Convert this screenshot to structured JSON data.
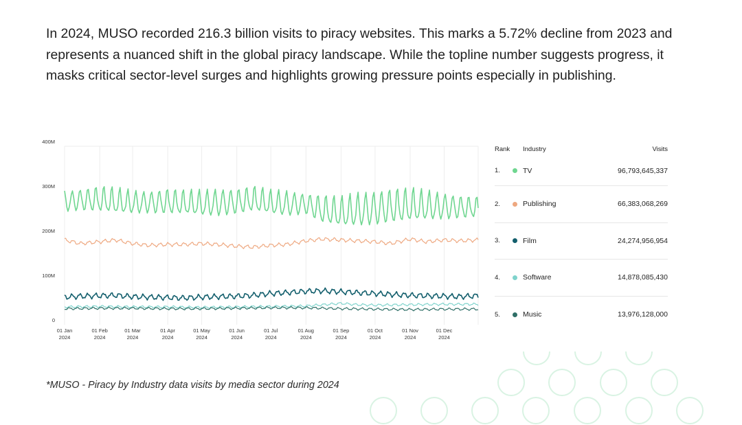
{
  "intro_text": "In 2024, MUSO recorded 216.3 billion visits to piracy websites. This marks a 5.72% decline from 2023 and represents a nuanced shift in the global piracy landscape. While the topline number suggests progress, it masks critical sector-level surges and highlights growing pressure points especially in publishing.",
  "footnote": "*MUSO - Piracy by Industry data visits by media sector during 2024",
  "table": {
    "headers": {
      "rank": "Rank",
      "industry": "Industry",
      "visits": "Visits"
    },
    "rows": [
      {
        "rank": "1.",
        "industry": "TV",
        "visits": "96,793,645,337",
        "color": "#6fd690"
      },
      {
        "rank": "2.",
        "industry": "Publishing",
        "visits": "66,383,068,269",
        "color": "#eea880"
      },
      {
        "rank": "3.",
        "industry": "Film",
        "visits": "24,274,956,954",
        "color": "#125e6c"
      },
      {
        "rank": "4.",
        "industry": "Software",
        "visits": "14,878,085,430",
        "color": "#7fd3cc"
      },
      {
        "rank": "5.",
        "industry": "Music",
        "visits": "13,976,128,000",
        "color": "#2f6f67"
      }
    ]
  },
  "chart_data": {
    "type": "line",
    "title": "",
    "xlabel": "",
    "ylabel": "",
    "ylim": [
      0,
      400
    ],
    "yticks": [
      "0",
      "100M",
      "200M",
      "300M",
      "400M"
    ],
    "ytick_values": [
      0,
      100,
      200,
      300,
      400
    ],
    "y_unit": "M visits (daily)",
    "xlim": [
      "2024-01-01",
      "2024-12-31"
    ],
    "xticks": [
      {
        "label": "01 Jan",
        "year": "2024",
        "date": "2024-01-01"
      },
      {
        "label": "01 Feb",
        "year": "2024",
        "date": "2024-02-01"
      },
      {
        "label": "01 Mar",
        "year": "2024",
        "date": "2024-03-01"
      },
      {
        "label": "01 Apr",
        "year": "2024",
        "date": "2024-04-01"
      },
      {
        "label": "01 May",
        "year": "2024",
        "date": "2024-05-01"
      },
      {
        "label": "01 Jun",
        "year": "2024",
        "date": "2024-06-01"
      },
      {
        "label": "01 Jul",
        "year": "2024",
        "date": "2024-07-01"
      },
      {
        "label": "01 Aug",
        "year": "2024",
        "date": "2024-08-01"
      },
      {
        "label": "01 Sep",
        "year": "2024",
        "date": "2024-09-01"
      },
      {
        "label": "01 Oct",
        "year": "2024",
        "date": "2024-10-01"
      },
      {
        "label": "01 Nov",
        "year": "2024",
        "date": "2024-11-01"
      },
      {
        "label": "01 Dec",
        "year": "2024",
        "date": "2024-12-01"
      }
    ],
    "grid": "vertical",
    "legend": "right-table",
    "series": [
      {
        "name": "TV",
        "color": "#6fd690",
        "stroke_width": 1.6,
        "x": [
          "2024-01-01",
          "2024-01-15",
          "2024-02-01",
          "2024-02-15",
          "2024-03-01",
          "2024-03-15",
          "2024-04-01",
          "2024-04-15",
          "2024-05-01",
          "2024-05-15",
          "2024-06-01",
          "2024-06-15",
          "2024-07-01",
          "2024-07-15",
          "2024-08-01",
          "2024-08-15",
          "2024-09-01",
          "2024-09-15",
          "2024-10-01",
          "2024-10-15",
          "2024-11-01",
          "2024-11-15",
          "2024-12-01",
          "2024-12-15",
          "2024-12-31"
        ],
        "low": [
          255,
          258,
          255,
          250,
          250,
          252,
          250,
          248,
          245,
          245,
          250,
          255,
          248,
          245,
          250,
          230,
          220,
          222,
          225,
          230,
          232,
          235,
          238,
          240,
          242
        ],
        "high": [
          300,
          305,
          310,
          305,
          300,
          300,
          305,
          300,
          300,
          305,
          305,
          310,
          300,
          300,
          295,
          290,
          285,
          295,
          300,
          305,
          305,
          300,
          295,
          290,
          285
        ]
      },
      {
        "name": "Publishing",
        "color": "#eea880",
        "stroke_width": 1.2,
        "x": [
          "2024-01-01",
          "2024-01-15",
          "2024-02-01",
          "2024-02-15",
          "2024-03-01",
          "2024-03-15",
          "2024-04-01",
          "2024-04-15",
          "2024-05-01",
          "2024-05-15",
          "2024-06-01",
          "2024-06-15",
          "2024-07-01",
          "2024-07-15",
          "2024-08-01",
          "2024-08-15",
          "2024-09-01",
          "2024-09-15",
          "2024-10-01",
          "2024-10-15",
          "2024-11-01",
          "2024-11-15",
          "2024-12-01",
          "2024-12-15",
          "2024-12-31"
        ],
        "values": [
          190,
          182,
          186,
          190,
          182,
          178,
          180,
          180,
          182,
          180,
          176,
          174,
          178,
          180,
          188,
          192,
          190,
          188,
          186,
          182,
          192,
          186,
          190,
          188,
          190
        ]
      },
      {
        "name": "Film",
        "color": "#125e6c",
        "stroke_width": 1.6,
        "x": [
          "2024-01-01",
          "2024-01-15",
          "2024-02-01",
          "2024-02-15",
          "2024-03-01",
          "2024-03-15",
          "2024-04-01",
          "2024-04-15",
          "2024-05-01",
          "2024-05-15",
          "2024-06-01",
          "2024-06-15",
          "2024-07-01",
          "2024-07-15",
          "2024-08-01",
          "2024-08-15",
          "2024-09-01",
          "2024-09-15",
          "2024-10-01",
          "2024-10-15",
          "2024-11-01",
          "2024-11-15",
          "2024-12-01",
          "2024-12-15",
          "2024-12-31"
        ],
        "values": [
          62,
          64,
          65,
          66,
          63,
          62,
          61,
          60,
          62,
          63,
          64,
          66,
          70,
          72,
          75,
          76,
          74,
          72,
          70,
          68,
          66,
          65,
          64,
          63,
          65
        ]
      },
      {
        "name": "Software",
        "color": "#7fd3cc",
        "stroke_width": 1.2,
        "x": [
          "2024-01-01",
          "2024-02-01",
          "2024-03-01",
          "2024-04-01",
          "2024-05-01",
          "2024-06-01",
          "2024-07-01",
          "2024-08-01",
          "2024-09-01",
          "2024-09-15",
          "2024-10-01",
          "2024-11-01",
          "2024-12-01",
          "2024-12-31"
        ],
        "values": [
          40,
          41,
          40,
          40,
          39,
          40,
          41,
          42,
          48,
          45,
          44,
          45,
          46,
          46
        ]
      },
      {
        "name": "Music",
        "color": "#2f6f67",
        "stroke_width": 1.2,
        "x": [
          "2024-01-01",
          "2024-02-01",
          "2024-03-01",
          "2024-04-01",
          "2024-05-01",
          "2024-06-01",
          "2024-07-01",
          "2024-08-01",
          "2024-09-01",
          "2024-10-01",
          "2024-11-01",
          "2024-12-01",
          "2024-12-31"
        ],
        "values": [
          36,
          37,
          37,
          36,
          36,
          37,
          38,
          38,
          36,
          35,
          34,
          35,
          35
        ]
      }
    ]
  }
}
